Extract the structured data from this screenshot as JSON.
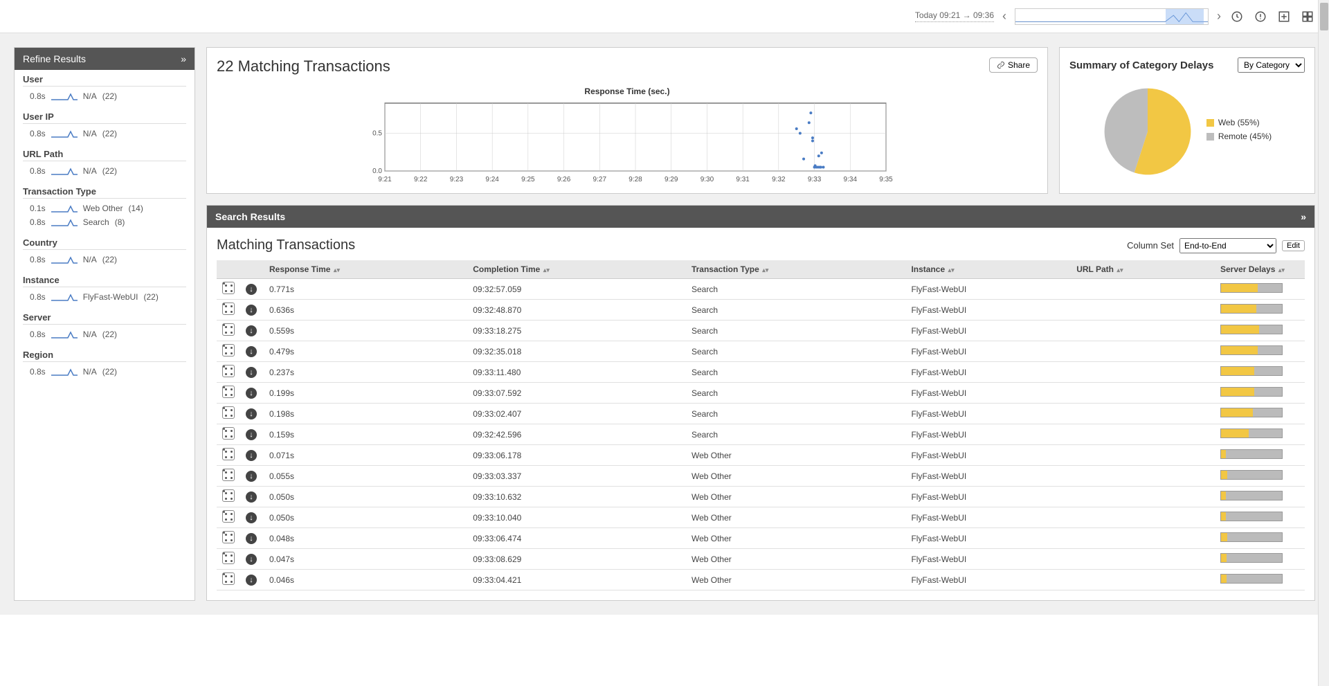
{
  "topbar": {
    "time_range": "Today 09:21 → 09:36",
    "sparkline": {
      "highlight_left_pct": 78,
      "highlight_width_pct": 20
    }
  },
  "sidebar": {
    "title": "Refine Results",
    "filters": [
      {
        "label": "User",
        "items": [
          {
            "time": "0.8s",
            "name": "N/A",
            "count": "(22)"
          }
        ]
      },
      {
        "label": "User IP",
        "items": [
          {
            "time": "0.8s",
            "name": "N/A",
            "count": "(22)"
          }
        ]
      },
      {
        "label": "URL Path",
        "items": [
          {
            "time": "0.8s",
            "name": "N/A",
            "count": "(22)"
          }
        ]
      },
      {
        "label": "Transaction Type",
        "items": [
          {
            "time": "0.1s",
            "name": "Web Other",
            "count": "(14)"
          },
          {
            "time": "0.8s",
            "name": "Search",
            "count": "(8)"
          }
        ]
      },
      {
        "label": "Country",
        "items": [
          {
            "time": "0.8s",
            "name": "N/A",
            "count": "(22)"
          }
        ]
      },
      {
        "label": "Instance",
        "items": [
          {
            "time": "0.8s",
            "name": "FlyFast-WebUI",
            "count": "(22)"
          }
        ]
      },
      {
        "label": "Server",
        "items": [
          {
            "time": "0.8s",
            "name": "N/A",
            "count": "(22)"
          }
        ]
      },
      {
        "label": "Region",
        "items": [
          {
            "time": "0.8s",
            "name": "N/A",
            "count": "(22)"
          }
        ]
      }
    ]
  },
  "chart_card": {
    "title": "22 Matching Transactions",
    "share_label": "Share",
    "scatter": {
      "title": "Response Time (sec.)",
      "x_ticks": [
        "9:21",
        "9:22",
        "9:23",
        "9:24",
        "9:25",
        "9:26",
        "9:27",
        "9:28",
        "9:29",
        "9:30",
        "9:31",
        "9:32",
        "9:33",
        "9:34",
        "9:35"
      ],
      "y_ticks": [
        "0.0",
        "0.5"
      ],
      "ylim": [
        0,
        0.9
      ],
      "point_color": "#4a7cc4",
      "grid_color": "#cccccc",
      "points": [
        {
          "x": 11.6,
          "y": 0.5
        },
        {
          "x": 11.95,
          "y": 0.4
        },
        {
          "x": 11.95,
          "y": 0.44
        },
        {
          "x": 11.9,
          "y": 0.77
        },
        {
          "x": 11.85,
          "y": 0.64
        },
        {
          "x": 11.5,
          "y": 0.56
        },
        {
          "x": 11.7,
          "y": 0.16
        },
        {
          "x": 12.0,
          "y": 0.05
        },
        {
          "x": 12.02,
          "y": 0.07
        },
        {
          "x": 12.05,
          "y": 0.05
        },
        {
          "x": 12.1,
          "y": 0.05
        },
        {
          "x": 12.12,
          "y": 0.2
        },
        {
          "x": 12.15,
          "y": 0.05
        },
        {
          "x": 12.18,
          "y": 0.05
        },
        {
          "x": 12.2,
          "y": 0.24
        },
        {
          "x": 12.25,
          "y": 0.05
        }
      ]
    }
  },
  "pie_card": {
    "title": "Summary of Category Delays",
    "select_value": "By Category",
    "colors": {
      "web": "#f2c744",
      "remote": "#bdbdbd"
    },
    "slices": [
      {
        "label": "Web (55%)",
        "value": 55,
        "color": "#f2c744"
      },
      {
        "label": "Remote (45%)",
        "value": 45,
        "color": "#bdbdbd"
      }
    ]
  },
  "results": {
    "header": "Search Results",
    "title": "Matching Transactions",
    "colset_label": "Column Set",
    "colset_value": "End-to-End",
    "edit_label": "Edit",
    "columns": [
      "",
      "",
      "Response Time",
      "Completion Time",
      "Transaction Type",
      "Instance",
      "URL Path",
      "Server Delays"
    ],
    "rows": [
      {
        "rt": "0.771s",
        "ct": "09:32:57.059",
        "tt": "Search",
        "inst": "FlyFast-WebUI",
        "web_pct": 60
      },
      {
        "rt": "0.636s",
        "ct": "09:32:48.870",
        "tt": "Search",
        "inst": "FlyFast-WebUI",
        "web_pct": 58
      },
      {
        "rt": "0.559s",
        "ct": "09:33:18.275",
        "tt": "Search",
        "inst": "FlyFast-WebUI",
        "web_pct": 62
      },
      {
        "rt": "0.479s",
        "ct": "09:32:35.018",
        "tt": "Search",
        "inst": "FlyFast-WebUI",
        "web_pct": 60
      },
      {
        "rt": "0.237s",
        "ct": "09:33:11.480",
        "tt": "Search",
        "inst": "FlyFast-WebUI",
        "web_pct": 55
      },
      {
        "rt": "0.199s",
        "ct": "09:33:07.592",
        "tt": "Search",
        "inst": "FlyFast-WebUI",
        "web_pct": 55
      },
      {
        "rt": "0.198s",
        "ct": "09:33:02.407",
        "tt": "Search",
        "inst": "FlyFast-WebUI",
        "web_pct": 52
      },
      {
        "rt": "0.159s",
        "ct": "09:32:42.596",
        "tt": "Search",
        "inst": "FlyFast-WebUI",
        "web_pct": 45
      },
      {
        "rt": "0.071s",
        "ct": "09:33:06.178",
        "tt": "Web Other",
        "inst": "FlyFast-WebUI",
        "web_pct": 8
      },
      {
        "rt": "0.055s",
        "ct": "09:33:03.337",
        "tt": "Web Other",
        "inst": "FlyFast-WebUI",
        "web_pct": 10
      },
      {
        "rt": "0.050s",
        "ct": "09:33:10.632",
        "tt": "Web Other",
        "inst": "FlyFast-WebUI",
        "web_pct": 8
      },
      {
        "rt": "0.050s",
        "ct": "09:33:10.040",
        "tt": "Web Other",
        "inst": "FlyFast-WebUI",
        "web_pct": 8
      },
      {
        "rt": "0.048s",
        "ct": "09:33:06.474",
        "tt": "Web Other",
        "inst": "FlyFast-WebUI",
        "web_pct": 10
      },
      {
        "rt": "0.047s",
        "ct": "09:33:08.629",
        "tt": "Web Other",
        "inst": "FlyFast-WebUI",
        "web_pct": 9
      },
      {
        "rt": "0.046s",
        "ct": "09:33:04.421",
        "tt": "Web Other",
        "inst": "FlyFast-WebUI",
        "web_pct": 9
      }
    ]
  }
}
